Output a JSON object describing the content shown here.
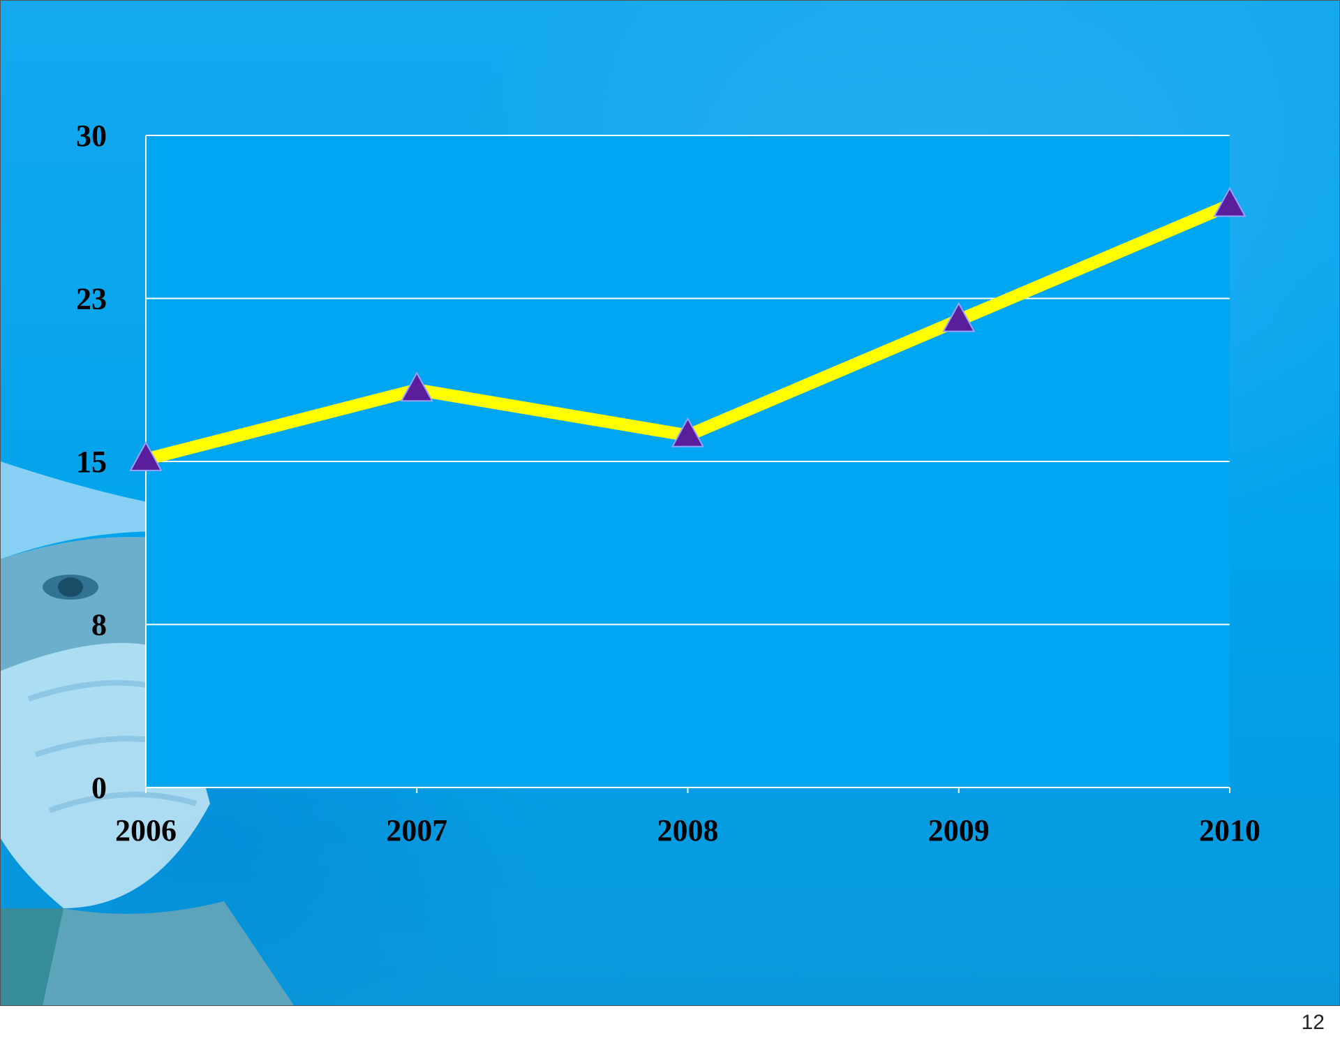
{
  "slide": {
    "page_number": "12"
  },
  "chart_data": {
    "type": "line",
    "categories": [
      "2006",
      "2007",
      "2008",
      "2009",
      "2010"
    ],
    "series": [
      {
        "values": [
          15.1,
          18.3,
          16.2,
          21.5,
          26.8
        ],
        "color": "#ffff00",
        "marker": "triangle",
        "marker_color": "#5a1e9c"
      }
    ],
    "y_ticks": [
      "0",
      "8",
      "15",
      "23",
      "30"
    ],
    "y_tick_values": [
      0,
      7.5,
      15,
      22.5,
      30
    ],
    "ylim": [
      0,
      30
    ],
    "grid": true,
    "plot_background": "#00a6f2",
    "gridline_color": "#ffffff",
    "title": "",
    "xlabel": "",
    "ylabel": ""
  }
}
